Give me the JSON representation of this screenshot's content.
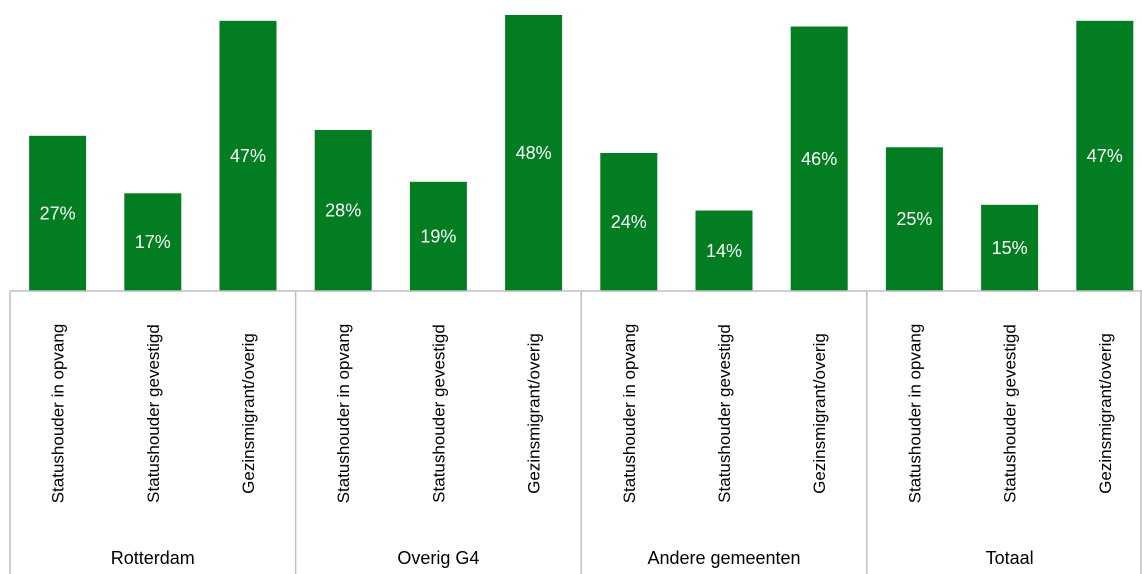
{
  "chart_data": {
    "type": "bar",
    "title": "",
    "xlabel": "",
    "ylabel": "",
    "ylim": [
      0,
      0.48
    ],
    "value_format": "percent",
    "bar_color": "#027D21",
    "groups": [
      {
        "name": "Rotterdam",
        "categories": [
          "Statushouder in opvang",
          "Statushouder gevestigd",
          "Gezinsmigrant/overig"
        ],
        "values": [
          27,
          17,
          47
        ],
        "labels": [
          "27%",
          "17%",
          "47%"
        ]
      },
      {
        "name": "Overig G4",
        "categories": [
          "Statushouder in opvang",
          "Statushouder gevestigd",
          "Gezinsmigrant/overig"
        ],
        "values": [
          28,
          19,
          48
        ],
        "labels": [
          "28%",
          "19%",
          "48%"
        ]
      },
      {
        "name": "Andere gemeenten",
        "categories": [
          "Statushouder in opvang",
          "Statushouder gevestigd",
          "Gezinsmigrant/overig"
        ],
        "values": [
          24,
          14,
          46
        ],
        "labels": [
          "24%",
          "14%",
          "46%"
        ]
      },
      {
        "name": "Totaal",
        "categories": [
          "Statushouder in opvang",
          "Statushouder gevestigd",
          "Gezinsmigrant/overig"
        ],
        "values": [
          25,
          15,
          47
        ],
        "labels": [
          "25%",
          "15%",
          "47%"
        ]
      }
    ]
  }
}
